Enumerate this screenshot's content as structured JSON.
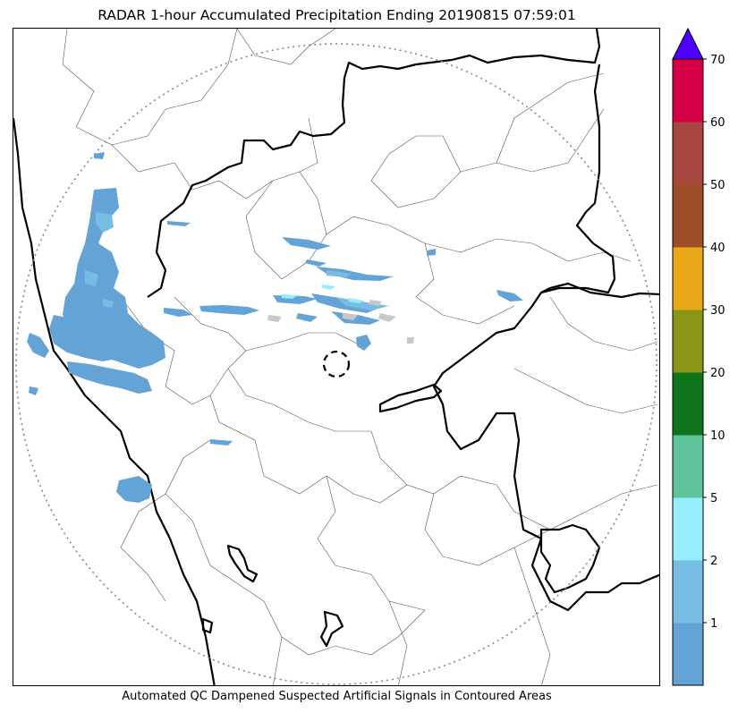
{
  "title": "RADAR 1-hour Accumulated Precipitation Ending 20190815 07:59:01",
  "footnote": "Automated QC Dampened Suspected Artificial Signals in Contoured Areas",
  "colorbar": {
    "tick_labels": [
      "1",
      "2",
      "5",
      "10",
      "20",
      "30",
      "40",
      "50",
      "60",
      "70"
    ],
    "colors": [
      "#63a3d5",
      "#77bde3",
      "#95edfd",
      "#5ec39b",
      "#10741b",
      "#8b9617",
      "#e8a81a",
      "#9b4e28",
      "#a7463f",
      "#d50045"
    ],
    "extend_color": "#4d00ff",
    "extend": "max"
  },
  "colors": {
    "precip_light": "#63a3d5",
    "precip_medium": "#77bde3",
    "precip_cyan": "#95edfd",
    "dampened_signal": "#c8c8c8",
    "state_border": "#000000",
    "district_border": "#555555",
    "range_ring": "#888888"
  }
}
